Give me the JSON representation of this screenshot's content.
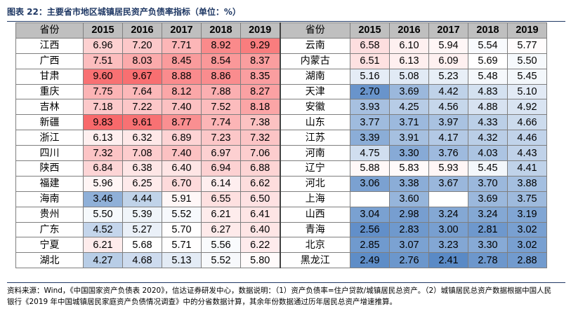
{
  "title": "图表 22：主要省市地区城镇居民资产负债率指标（单位：%）",
  "headers": [
    "省份",
    "2015",
    "2016",
    "2017",
    "2018",
    "2019"
  ],
  "left_rows": [
    {
      "province": "江西",
      "values": [
        "6.96",
        "7.20",
        "7.71",
        "8.92",
        "9.29"
      ]
    },
    {
      "province": "广西",
      "values": [
        "7.51",
        "8.03",
        "8.45",
        "8.54",
        "8.37"
      ]
    },
    {
      "province": "甘肃",
      "values": [
        "9.60",
        "9.67",
        "8.88",
        "8.86",
        "8.35"
      ]
    },
    {
      "province": "重庆",
      "values": [
        "7.75",
        "7.64",
        "8.12",
        "7.88",
        "8.27"
      ]
    },
    {
      "province": "吉林",
      "values": [
        "7.18",
        "7.22",
        "7.40",
        "7.52",
        "8.18"
      ]
    },
    {
      "province": "新疆",
      "values": [
        "9.83",
        "9.61",
        "8.77",
        "7.74",
        "7.38"
      ]
    },
    {
      "province": "浙江",
      "values": [
        "6.13",
        "6.32",
        "6.89",
        "7.23",
        "7.32"
      ]
    },
    {
      "province": "四川",
      "values": [
        "7.32",
        "7.08",
        "7.40",
        "6.97",
        "7.06"
      ]
    },
    {
      "province": "陕西",
      "values": [
        "6.84",
        "6.38",
        "6.40",
        "6.94",
        "6.88"
      ]
    },
    {
      "province": "福建",
      "values": [
        "5.96",
        "6.25",
        "6.70",
        "6.14",
        "6.62"
      ]
    },
    {
      "province": "海南",
      "values": [
        "3.46",
        "4.44",
        "5.91",
        "6.55",
        "6.50"
      ]
    },
    {
      "province": "贵州",
      "values": [
        "5.50",
        "5.39",
        "5.52",
        "6.21",
        "6.41"
      ]
    },
    {
      "province": "广东",
      "values": [
        "4.52",
        "5.27",
        "5.70",
        "6.27",
        "6.40"
      ]
    },
    {
      "province": "宁夏",
      "values": [
        "6.21",
        "5.68",
        "5.71",
        "5.56",
        "6.22"
      ]
    },
    {
      "province": "湖北",
      "values": [
        "4.27",
        "4.68",
        "5.13",
        "5.52",
        "5.80"
      ]
    }
  ],
  "right_rows": [
    {
      "province": "云南",
      "values": [
        "6.58",
        "6.10",
        "5.94",
        "5.54",
        "5.77"
      ]
    },
    {
      "province": "内蒙古",
      "values": [
        "6.51",
        "6.13",
        "6.09",
        "5.69",
        "5.50"
      ]
    },
    {
      "province": "湖南",
      "values": [
        "5.16",
        "5.08",
        "5.23",
        "5.48",
        "5.45"
      ]
    },
    {
      "province": "天津",
      "values": [
        "2.70",
        "3.69",
        "4.42",
        "4.83",
        "5.10"
      ]
    },
    {
      "province": "安徽",
      "values": [
        "3.93",
        "4.25",
        "4.56",
        "4.88",
        "4.92"
      ]
    },
    {
      "province": "山东",
      "values": [
        "3.77",
        "3.71",
        "3.97",
        "4.33",
        "4.66"
      ]
    },
    {
      "province": "江苏",
      "values": [
        "3.39",
        "3.91",
        "4.17",
        "4.32",
        "4.46"
      ]
    },
    {
      "province": "河南",
      "values": [
        "4.75",
        "3.30",
        "3.76",
        "4.03",
        "4.43"
      ]
    },
    {
      "province": "辽宁",
      "values": [
        "5.88",
        "5.83",
        "5.93",
        "5.45",
        "4.41"
      ]
    },
    {
      "province": "河北",
      "values": [
        "3.06",
        "3.38",
        "3.67",
        "3.70",
        "3.88"
      ]
    },
    {
      "province": "上海",
      "values": [
        "",
        "3.60",
        "",
        "3.69",
        "3.75"
      ]
    },
    {
      "province": "山西",
      "values": [
        "3.04",
        "2.98",
        "3.24",
        "3.24",
        "3.19"
      ]
    },
    {
      "province": "青海",
      "values": [
        "2.56",
        "2.83",
        "3.00",
        "2.81",
        "3.02"
      ]
    },
    {
      "province": "北京",
      "values": [
        "2.85",
        "3.07",
        "3.23",
        "3.30",
        "3.02"
      ]
    },
    {
      "province": "黑龙江",
      "values": [
        "2.49",
        "2.76",
        "2.41",
        "2.78",
        "2.88"
      ]
    }
  ],
  "footnote_line1": "资料来源：Wind，《中国国家资产负债表 2020》，信达证券研发中心，数据说明：（1）资产负债率=住户贷款/城镇居民总资产。（2）城镇居民总资产数据根据中国人民",
  "footnote_line2": "银行《2019 年中国城镇居民家庭资产负债情况调查》中的分省数据计算，其余年份数据通过历年居民总资产增速推算。",
  "colors": {
    "header_bg": "#bfbfbf",
    "high": "#f8696b",
    "low": "#5a8ac6",
    "mid": "#ffffff",
    "title": "#1f3864"
  }
}
